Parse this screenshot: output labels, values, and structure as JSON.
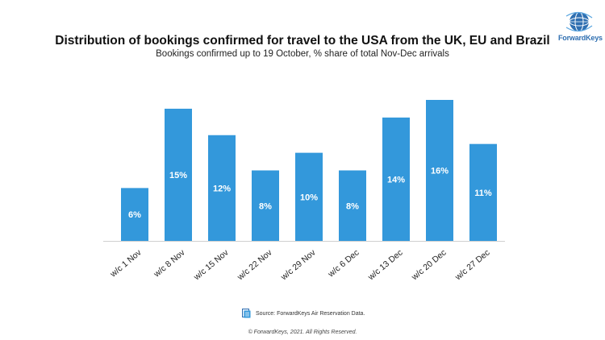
{
  "header": {
    "title": "Distribution of bookings confirmed for travel to the USA from the UK, EU and Brazil",
    "subtitle": "Bookings confirmed up to 19 October, % share of total Nov-Dec arrivals"
  },
  "logo": {
    "text": "ForwardKeys",
    "icon": "globe-icon",
    "color": "#2f6fb1"
  },
  "footer": {
    "source": "Source: ForwardKeys Air Reservation Data.",
    "source_icon": "document-icon",
    "copyright": "© ForwardKeys, 2021. All Rights Reserved."
  },
  "chart_data": {
    "type": "bar",
    "title": "Distribution of bookings confirmed for travel to the USA from the UK, EU and Brazil",
    "subtitle": "Bookings confirmed up to 19 October, % share of total Nov-Dec arrivals",
    "categories": [
      "w/c 1 Nov",
      "w/c 8 Nov",
      "w/c 15 Nov",
      "w/c 22 Nov",
      "w/c 29 Nov",
      "w/c 6 Dec",
      "w/c 13 Dec",
      "w/c 20 Dec",
      "w/c 27 Dec"
    ],
    "values": [
      6,
      15,
      12,
      8,
      10,
      8,
      14,
      16,
      11
    ],
    "data_labels": [
      "6%",
      "15%",
      "12%",
      "8%",
      "10%",
      "8%",
      "14%",
      "16%",
      "11%"
    ],
    "bar_color": "#3398db",
    "ylim": [
      0,
      16
    ],
    "grid": false,
    "legend": "none"
  }
}
